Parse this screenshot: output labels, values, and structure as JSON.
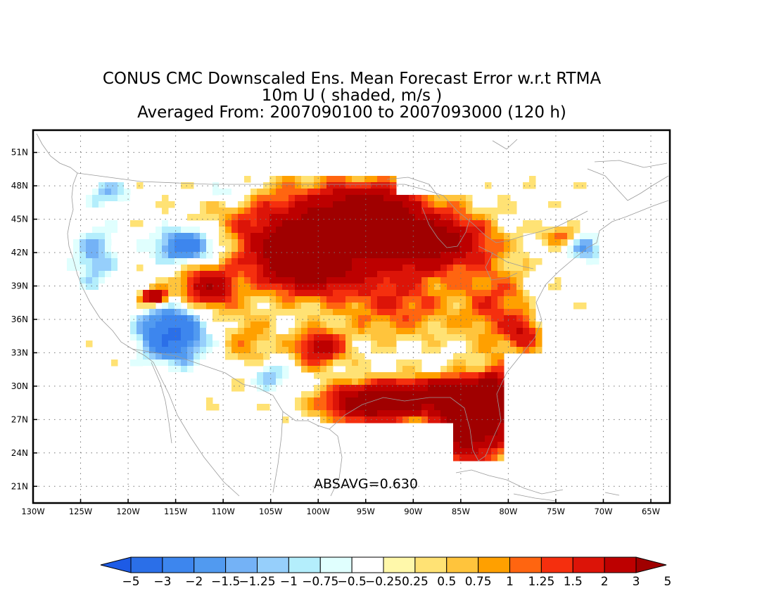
{
  "title": {
    "line1": "CONUS CMC Downscaled Ens. Mean Forecast Error w.r.t RTMA",
    "line2": "10m U ( shaded, m/s )",
    "line3": "Averaged From: 2007090100 to 2007093000 (120 h)"
  },
  "map": {
    "lat_labels": [
      "51N",
      "48N",
      "45N",
      "42N",
      "39N",
      "36N",
      "33N",
      "30N",
      "27N",
      "24N",
      "21N"
    ],
    "lon_labels": [
      "130W",
      "125W",
      "120W",
      "115W",
      "110W",
      "105W",
      "100W",
      "95W",
      "90W",
      "85W",
      "80W",
      "75W",
      "70W",
      "65W"
    ],
    "annotation": "ABSAVG=0.630",
    "grid": true,
    "projection": "lat-lon"
  },
  "colorbar": {
    "labels": [
      "−5",
      "−3",
      "−2",
      "−1.5",
      "−1.25",
      "−1",
      "−0.75",
      "−0.5",
      "−0.25",
      "0.25",
      "0.5",
      "0.75",
      "1",
      "1.25",
      "1.5",
      "2",
      "3",
      "5"
    ],
    "colors": [
      "#1d5be6",
      "#2b6fe8",
      "#3d86ee",
      "#519af0",
      "#74b2f6",
      "#96cffb",
      "#b4eefc",
      "#e0fffe",
      "#ffffff",
      "#fff8aa",
      "#ffe274",
      "#ffc43c",
      "#ffa000",
      "#ff6510",
      "#f52f0e",
      "#dc1408",
      "#bd0000",
      "#a00000"
    ]
  }
}
